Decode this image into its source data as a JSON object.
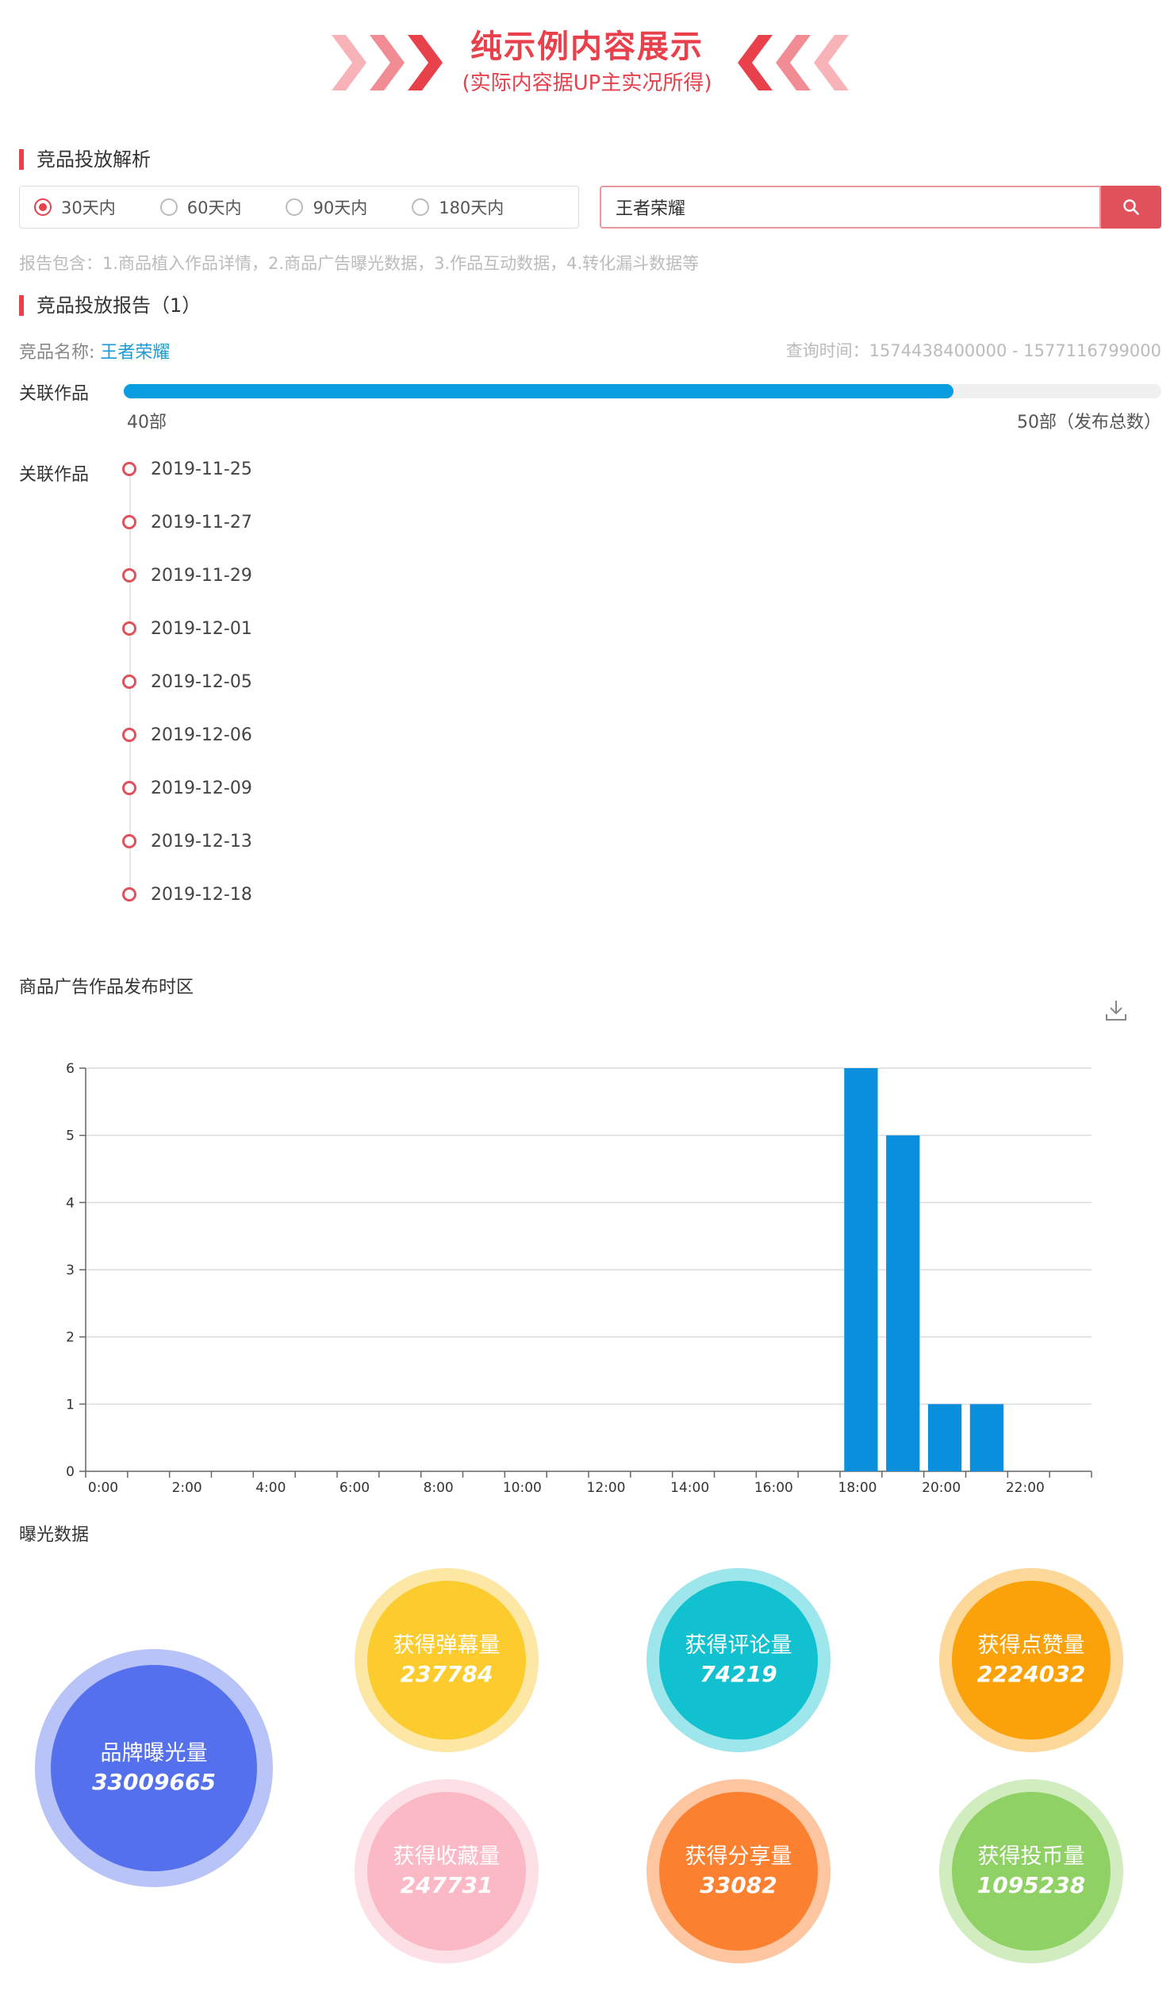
{
  "banner": {
    "title": "纯示例内容展示",
    "subtitle": "(实际内容据UP主实况所得)",
    "accent_color": "#e8414c"
  },
  "section1": {
    "title": "竞品投放解析"
  },
  "filters": {
    "options": [
      "30天内",
      "60天内",
      "90天内",
      "180天内"
    ],
    "selected": "30天内"
  },
  "search": {
    "value": "王者荣耀",
    "button_icon": "search-icon"
  },
  "hint": "报告包含：1.商品植入作品详情，2.商品广告曝光数据，3.作品互动数据，4.转化漏斗数据等",
  "section2": {
    "title": "竞品投放报告（1）"
  },
  "report": {
    "product_label": "竞品名称:",
    "product_name": "王者荣耀",
    "query_time": "查询时间：1574438400000 - 1577116799000"
  },
  "related": {
    "label": "关联作品",
    "count": "40部",
    "total": "50部（发布总数）",
    "progress": 0.8
  },
  "timeline": {
    "label": "关联作品",
    "dates": [
      "2019-11-25",
      "2019-11-27",
      "2019-11-29",
      "2019-12-01",
      "2019-12-05",
      "2019-12-06",
      "2019-12-09",
      "2019-12-13",
      "2019-12-18"
    ]
  },
  "chart_section": {
    "title": "商品广告作品发布时区",
    "download_icon": "download-icon"
  },
  "chart_data": {
    "type": "bar",
    "title": "",
    "xlabel": "",
    "ylabel": "",
    "x_ticks": [
      "0:00",
      "2:00",
      "4:00",
      "6:00",
      "8:00",
      "10:00",
      "12:00",
      "14:00",
      "16:00",
      "18:00",
      "20:00",
      "22:00"
    ],
    "categories": [
      "0:00",
      "1:00",
      "2:00",
      "3:00",
      "4:00",
      "5:00",
      "6:00",
      "7:00",
      "8:00",
      "9:00",
      "10:00",
      "11:00",
      "12:00",
      "13:00",
      "14:00",
      "15:00",
      "16:00",
      "17:00",
      "18:00",
      "19:00",
      "20:00",
      "21:00",
      "22:00",
      "23:00"
    ],
    "values": [
      0,
      0,
      0,
      0,
      0,
      0,
      0,
      0,
      0,
      0,
      0,
      0,
      0,
      0,
      0,
      0,
      0,
      0,
      6,
      5,
      1,
      1,
      0,
      0
    ],
    "ylim": [
      0,
      6
    ],
    "y_ticks": [
      "0",
      "1",
      "2",
      "3",
      "4",
      "5",
      "6"
    ],
    "grid": true,
    "bar_color": "#0a8fdc"
  },
  "exposure": {
    "title": "曝光数据",
    "brand": {
      "label": "品牌曝光量",
      "value": "33009665",
      "color": "#5470ec",
      "ring": "#b8c3f7"
    },
    "stats": [
      {
        "label": "获得弹幕量",
        "value": "237784",
        "color": "#fccb2e",
        "ring": "#fde7a5"
      },
      {
        "label": "获得评论量",
        "value": "74219",
        "color": "#12c1d0",
        "ring": "#9de6ec"
      },
      {
        "label": "获得点赞量",
        "value": "2224032",
        "color": "#fba20a",
        "ring": "#fdd89b"
      },
      {
        "label": "获得收藏量",
        "value": "247731",
        "color": "#fbb8c5",
        "ring": "#fde0e6"
      },
      {
        "label": "获得分享量",
        "value": "33082",
        "color": "#fb8131",
        "ring": "#fdc5a0"
      },
      {
        "label": "获得投币量",
        "value": "1095238",
        "color": "#8fd164",
        "ring": "#d1edc0"
      }
    ]
  }
}
